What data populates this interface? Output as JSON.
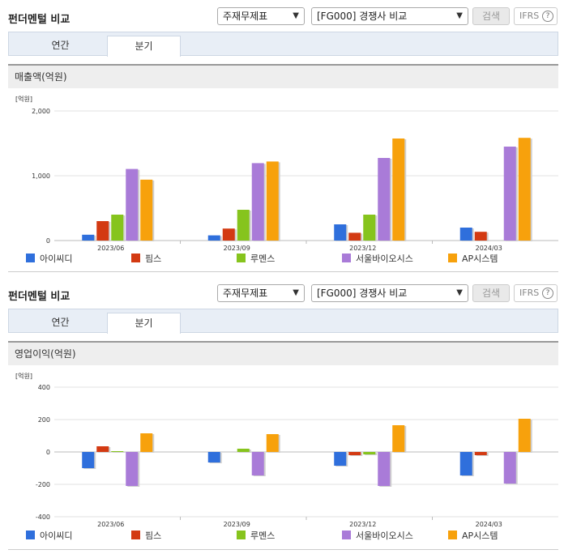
{
  "panels": [
    {
      "title": "펀더멘털 비교",
      "select1": "주재무제표",
      "select2": "[FG000] 경쟁사 비교",
      "search_label": "검색",
      "ifrs_label": "IFRS",
      "help_icon": "?",
      "tabs": [
        "연간",
        "분기"
      ],
      "active_tab": 1,
      "chart_header": "매출액(억원)",
      "unit_label": "[억원]"
    },
    {
      "title": "펀더멘털 비교",
      "select1": "주재무제표",
      "select2": "[FG000] 경쟁사 비교",
      "search_label": "검색",
      "ifrs_label": "IFRS",
      "help_icon": "?",
      "tabs": [
        "연간",
        "분기"
      ],
      "active_tab": 1,
      "chart_header": "영업이익(억원)",
      "unit_label": "[억원]"
    }
  ],
  "colors": {
    "아이씨디": "#2f6fdc",
    "핌스": "#d33a12",
    "루멘스": "#86c41d",
    "서울바이오시스": "#a97bd8",
    "AP시스템": "#f7a10c"
  },
  "chart_data": [
    {
      "type": "bar",
      "categories": [
        "2023/06",
        "2023/09",
        "2023/12",
        "2024/03"
      ],
      "series": [
        {
          "name": "아이씨디",
          "values": [
            90,
            80,
            250,
            200
          ]
        },
        {
          "name": "핌스",
          "values": [
            300,
            185,
            120,
            135
          ]
        },
        {
          "name": "루멘스",
          "values": [
            400,
            475,
            400,
            null
          ]
        },
        {
          "name": "서울바이오시스",
          "values": [
            1105,
            1195,
            1275,
            1450
          ]
        },
        {
          "name": "AP시스템",
          "values": [
            940,
            1220,
            1575,
            1585
          ]
        }
      ],
      "yticks": [
        0,
        1000,
        2000
      ],
      "ytick_labels": [
        "0",
        "1,000",
        "2,000"
      ],
      "ylim": [
        0,
        2000
      ],
      "grid": true,
      "legend": "bottom"
    },
    {
      "type": "bar",
      "categories": [
        "2023/06",
        "2023/09",
        "2023/12",
        "2024/03"
      ],
      "series": [
        {
          "name": "아이씨디",
          "values": [
            -100,
            -65,
            -85,
            -145
          ]
        },
        {
          "name": "핌스",
          "values": [
            35,
            null,
            -20,
            -20
          ]
        },
        {
          "name": "루멘스",
          "values": [
            5,
            20,
            -15,
            null
          ]
        },
        {
          "name": "서울바이오시스",
          "values": [
            -210,
            -145,
            -210,
            -195
          ]
        },
        {
          "name": "AP시스템",
          "values": [
            115,
            110,
            165,
            205
          ]
        }
      ],
      "yticks": [
        -400,
        -200,
        0,
        200,
        400
      ],
      "ytick_labels": [
        "-400",
        "-200",
        "0",
        "200",
        "400"
      ],
      "ylim": [
        -400,
        400
      ],
      "grid": true,
      "legend": "bottom"
    }
  ]
}
